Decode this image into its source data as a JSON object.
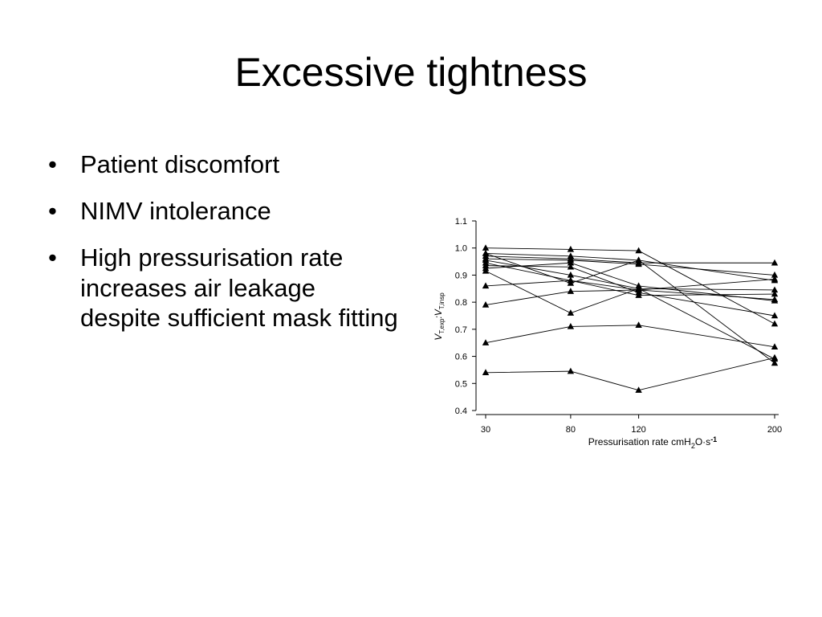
{
  "slide": {
    "title": "Excessive tightness",
    "bullet_glyph": "•",
    "bullets": [
      "Patient discomfort",
      "NIMV intolerance",
      "High pressurisation rate increases air leakage despite sufficient mask fitting"
    ]
  },
  "chart_data": {
    "type": "line",
    "x": [
      30,
      80,
      120,
      200
    ],
    "categories": [
      "30",
      "80",
      "120",
      "200"
    ],
    "xlabel_main": "Pressurisation rate cmH",
    "xlabel_sub": "2",
    "xlabel_tail": "O·s",
    "xlabel_sup": "-1",
    "ylabel_main": "V",
    "ylabel_sub1": "T,exp",
    "ylabel_mid": ":V",
    "ylabel_sub2": "T,insp",
    "ylim": [
      0.4,
      1.1
    ],
    "yticks": [
      "0.4",
      "0.5",
      "0.6",
      "0.7",
      "0.8",
      "0.9",
      "1.0",
      "1.1"
    ],
    "grid": false,
    "marker": "triangle",
    "color": "#000000",
    "series": [
      {
        "values": [
          1.0,
          0.995,
          0.99,
          0.72
        ]
      },
      {
        "values": [
          0.98,
          0.97,
          0.955,
          0.88
        ]
      },
      {
        "values": [
          0.97,
          0.96,
          0.945,
          0.945
        ]
      },
      {
        "values": [
          0.96,
          0.955,
          0.94,
          0.9
        ]
      },
      {
        "values": [
          0.955,
          0.9,
          0.85,
          0.845
        ]
      },
      {
        "values": [
          0.945,
          0.88,
          0.845,
          0.81
        ]
      },
      {
        "values": [
          0.935,
          0.93,
          0.835,
          0.75
        ]
      },
      {
        "values": [
          0.925,
          0.945,
          0.86,
          0.805
        ]
      },
      {
        "values": [
          0.915,
          0.76,
          0.85,
          0.59
        ]
      },
      {
        "values": [
          0.98,
          0.87,
          0.955,
          0.575
        ]
      },
      {
        "values": [
          0.86,
          0.88,
          0.825,
          0.83
        ]
      },
      {
        "values": [
          0.79,
          0.84,
          0.845,
          0.885
        ]
      },
      {
        "values": [
          0.65,
          0.71,
          0.715,
          0.635
        ]
      },
      {
        "values": [
          0.54,
          0.545,
          0.475,
          0.595
        ]
      }
    ]
  }
}
